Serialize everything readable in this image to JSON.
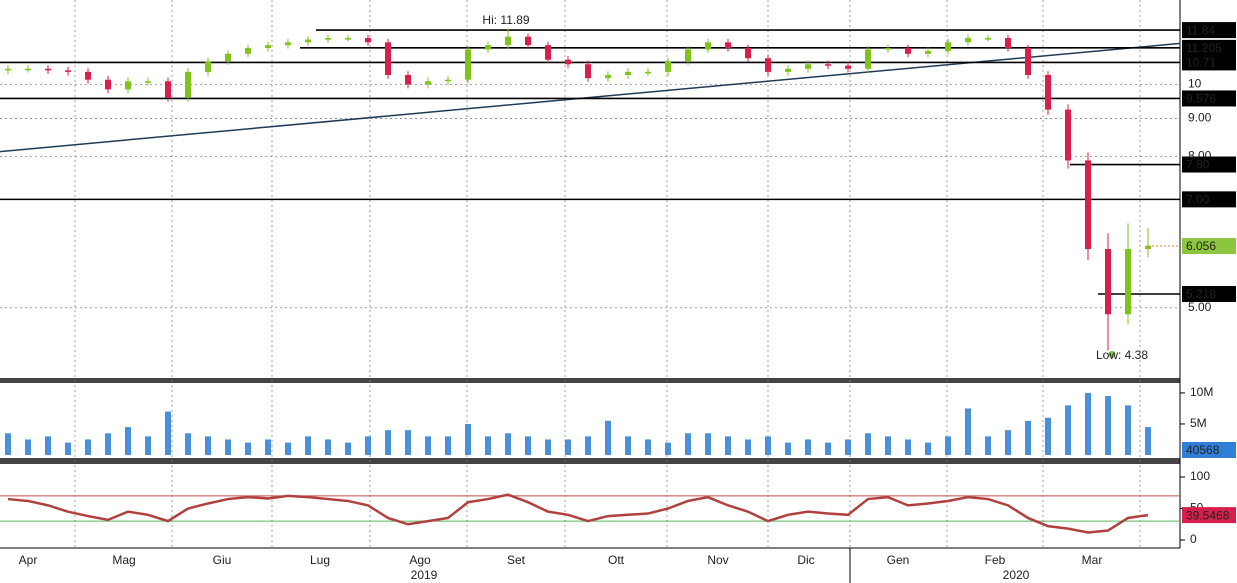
{
  "chart_data": [
    {
      "type": "candlestick",
      "log_scale": true,
      "grid": true,
      "up_color": "#7fc31c",
      "down_color": "#d6204b",
      "open": [
        10.45,
        10.5,
        10.5,
        10.45,
        10.4,
        10.15,
        9.85,
        10.1,
        10.1,
        9.6,
        10.4,
        10.75,
        11.0,
        11.2,
        11.3,
        11.4,
        11.5,
        11.55,
        11.55,
        11.4,
        10.3,
        10.0,
        10.1,
        10.15,
        11.15,
        11.3,
        11.6,
        11.3,
        10.8,
        10.65,
        10.2,
        10.3,
        10.4,
        10.4,
        10.75,
        11.15,
        11.4,
        11.2,
        10.85,
        10.4,
        10.5,
        10.65,
        10.6,
        10.5,
        11.15,
        11.2,
        11.0,
        11.1,
        11.4,
        11.55,
        11.55,
        11.2,
        10.3,
        9.25,
        7.9,
        6.0,
        4.9,
        6.0
      ],
      "close": [
        10.5,
        10.5,
        10.45,
        10.4,
        10.15,
        9.85,
        10.1,
        10.1,
        9.6,
        10.4,
        10.75,
        11.0,
        11.2,
        11.3,
        11.4,
        11.5,
        11.55,
        11.55,
        11.4,
        10.3,
        10.0,
        10.1,
        10.15,
        11.15,
        11.3,
        11.6,
        11.3,
        10.8,
        10.65,
        10.2,
        10.3,
        10.4,
        10.4,
        10.75,
        11.15,
        11.4,
        11.2,
        10.85,
        10.4,
        10.5,
        10.65,
        10.6,
        10.5,
        11.15,
        11.2,
        11.0,
        11.1,
        11.4,
        11.55,
        11.55,
        11.2,
        10.3,
        9.25,
        7.9,
        6.0,
        4.9,
        6.0,
        6.06
      ],
      "high": [
        10.62,
        10.62,
        10.62,
        10.57,
        10.52,
        10.27,
        10.22,
        10.22,
        10.22,
        10.52,
        10.87,
        11.12,
        11.32,
        11.42,
        11.52,
        11.62,
        11.67,
        11.67,
        11.67,
        11.52,
        10.42,
        10.22,
        10.27,
        11.27,
        11.42,
        11.89,
        11.72,
        11.42,
        10.92,
        10.77,
        10.42,
        10.52,
        10.52,
        10.87,
        11.27,
        11.52,
        11.52,
        11.32,
        10.97,
        10.62,
        10.77,
        10.77,
        10.72,
        11.27,
        11.32,
        11.32,
        11.22,
        11.52,
        11.67,
        11.67,
        11.67,
        11.32,
        10.42,
        9.4,
        8.1,
        6.3,
        6.5,
        6.4
      ],
      "low": [
        10.33,
        10.38,
        10.33,
        10.28,
        10.03,
        9.73,
        9.73,
        9.98,
        9.48,
        9.48,
        10.28,
        10.63,
        10.88,
        11.08,
        11.18,
        11.28,
        11.38,
        11.43,
        11.28,
        10.18,
        9.88,
        9.88,
        9.98,
        10.03,
        11.03,
        11.18,
        11.18,
        10.68,
        10.53,
        10.08,
        10.08,
        10.18,
        10.28,
        10.28,
        10.63,
        11.03,
        11.08,
        10.73,
        10.28,
        10.28,
        10.38,
        10.48,
        10.38,
        10.38,
        11.03,
        10.88,
        10.88,
        10.98,
        11.28,
        11.43,
        11.08,
        10.18,
        9.1,
        7.7,
        5.8,
        4.38,
        4.75,
        5.85
      ],
      "ylim": [
        4.02,
        13.0
      ],
      "yticks": [
        {
          "value": 5,
          "label": "5.00"
        },
        {
          "value": 8,
          "label": "8.00"
        },
        {
          "value": 9,
          "label": "9.00"
        },
        10
      ],
      "levels": [
        11.84,
        11.205,
        10.71,
        9.576,
        {
          "value": 7.8,
          "label": "7.80"
        },
        {
          "value": 7,
          "label": "7.00"
        },
        5.218
      ],
      "last_price": 6.056,
      "trendline": [
        8.12,
        11.36
      ],
      "annotations": [
        "Hi: 11.89",
        "Low: 4.38"
      ]
    },
    {
      "type": "bar",
      "color": "#4a90d9",
      "values": [
        3500000,
        2500000,
        3000000,
        2000000,
        2500000,
        3500000,
        4500000,
        3000000,
        7000000,
        3500000,
        3000000,
        2500000,
        2000000,
        2500000,
        2000000,
        3000000,
        2500000,
        2000000,
        3000000,
        4000000,
        4000000,
        3000000,
        3000000,
        5000000,
        3000000,
        3500000,
        3000000,
        2500000,
        2500000,
        3000000,
        5500000,
        3000000,
        2500000,
        2000000,
        3500000,
        3500000,
        3000000,
        2500000,
        3000000,
        2000000,
        2500000,
        2000000,
        2500000,
        3500000,
        3000000,
        2500000,
        2000000,
        3000000,
        7500000,
        3000000,
        4000000,
        5500000,
        6000000,
        8000000,
        10000000,
        9500000,
        8000000,
        4500000
      ],
      "ylim": [
        0,
        11600000
      ],
      "yticks": [
        {
          "value": 5000000,
          "label": "5M"
        },
        {
          "value": 10000000,
          "label": "10M"
        }
      ],
      "last_value": 40568
    },
    {
      "type": "line",
      "color": "#b0413e",
      "values": [
        65,
        62,
        55,
        45,
        38,
        32,
        45,
        40,
        30,
        50,
        58,
        65,
        68,
        66,
        70,
        68,
        65,
        62,
        55,
        35,
        25,
        30,
        35,
        60,
        65,
        72,
        60,
        45,
        40,
        30,
        38,
        40,
        42,
        50,
        62,
        68,
        55,
        45,
        30,
        40,
        45,
        42,
        40,
        65,
        68,
        55,
        58,
        62,
        68,
        65,
        55,
        35,
        22,
        18,
        12,
        15,
        35,
        39.5468
      ],
      "ylim": [
        -12.7,
        117.5
      ],
      "yticks": [
        0,
        50,
        100
      ],
      "levels": [
        70,
        30
      ],
      "level_colors": [
        "#c0504d",
        "#5cb85c"
      ],
      "xtick_labels": [
        "Apr",
        "Mag",
        "Giu",
        "Lug",
        "Ago",
        "Set",
        "Ott",
        "Nov",
        "Dic",
        "Gen",
        "Feb",
        "Mar"
      ],
      "year_labels": [
        "2019",
        "2020"
      ]
    }
  ]
}
